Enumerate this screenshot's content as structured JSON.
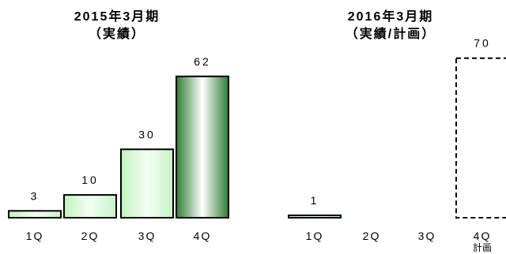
{
  "chart_data": [
    {
      "type": "bar",
      "title": "2015年3月期",
      "subtitle": "（実績）",
      "categories": [
        "1Q",
        "2Q",
        "3Q",
        "4Q"
      ],
      "values": [
        3,
        10,
        30,
        62
      ],
      "value_labels": [
        "3",
        "10",
        "30",
        "62"
      ],
      "styles": [
        "actual",
        "actual",
        "actual",
        "actual-highlight"
      ],
      "ylim": [
        0,
        80
      ],
      "grid": false
    },
    {
      "type": "bar",
      "title": "2016年3月期",
      "subtitle": "（実績/計画）",
      "categories": [
        "1Q",
        "2Q",
        "3Q",
        "4Q"
      ],
      "category_notes": [
        "",
        "",
        "",
        "計画"
      ],
      "values": [
        1,
        null,
        null,
        70
      ],
      "value_labels": [
        "1",
        "",
        "",
        "70"
      ],
      "styles": [
        "actual",
        "none",
        "none",
        "plan"
      ],
      "ylim": [
        0,
        80
      ],
      "grid": false
    }
  ]
}
